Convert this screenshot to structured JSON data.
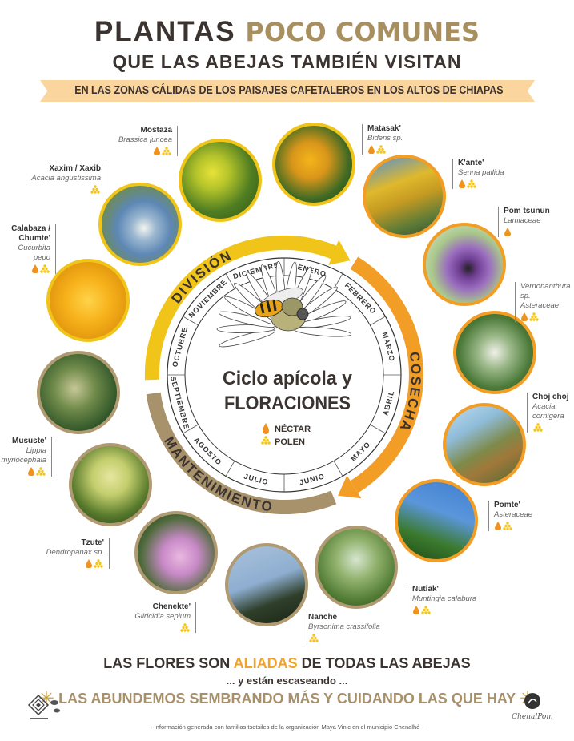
{
  "header": {
    "title_dark": "PLANTAS",
    "title_accent": "POCO COMUNES",
    "subtitle": "QUE LAS ABEJAS TAMBIÉN VISITAN",
    "ribbon": "EN LAS ZONAS CÁLIDAS DE LOS PAISAJES CAFETALEROS EN LOS ALTOS DE CHIAPAS"
  },
  "wheel": {
    "title_line1": "Ciclo apícola y",
    "title_line2": "FLORACIONES",
    "legend": {
      "nectar": "NÉCTAR",
      "pollen": "POLEN"
    },
    "seasons": {
      "division": "DIVISIÓN",
      "cosecha": "COSECHA",
      "mantenimiento": "MANTENIMIENTO"
    },
    "months": [
      "ENERO",
      "FEBRERO",
      "MARZO",
      "ABRIL",
      "MAYO",
      "JUNIO",
      "JULIO",
      "AGOSTO",
      "SEPTIEMBRE",
      "OCTUBRE",
      "NOVIEMBRE",
      "DICIEMBRE"
    ]
  },
  "colors": {
    "division": "#f0c419",
    "cosecha": "#f29d25",
    "mantenimiento": "#a8926b",
    "nectar": "#f0931e",
    "pollen": "#f5c518",
    "ribbon": "#fbd59e",
    "accent_text": "#a88f5f"
  },
  "plants": [
    {
      "name": "Mostaza",
      "scientific": "Brassica juncea",
      "nectar": true,
      "pollen": true
    },
    {
      "name": "Matasak'",
      "scientific": "Bidens sp.",
      "nectar": true,
      "pollen": true
    },
    {
      "name": "Xaxim / Xaxib",
      "scientific": "Acacia angustissima",
      "nectar": false,
      "pollen": true
    },
    {
      "name": "K'ante'",
      "scientific": "Senna pallida",
      "nectar": true,
      "pollen": true
    },
    {
      "name": "Calabaza / Chumte'",
      "scientific": "Cucurbita pepo",
      "nectar": true,
      "pollen": true
    },
    {
      "name": "Pom tsunun",
      "scientific": "Lamiaceae",
      "nectar": true,
      "pollen": false
    },
    {
      "name": "",
      "scientific": "Vernonanthura sp.",
      "family": "Asteraceae",
      "nectar": true,
      "pollen": true
    },
    {
      "name": "Mususte'",
      "scientific": "Lippia myriocephala",
      "nectar": true,
      "pollen": true
    },
    {
      "name": "Choj choj",
      "scientific": "Acacia cornigera",
      "nectar": false,
      "pollen": true
    },
    {
      "name": "Tzute'",
      "scientific": "Dendropanax sp.",
      "nectar": true,
      "pollen": true
    },
    {
      "name": "Pomte'",
      "scientific": "Asteraceae",
      "nectar": true,
      "pollen": true
    },
    {
      "name": "Chenekte'",
      "scientific": "Gliricidia sepium",
      "nectar": false,
      "pollen": true
    },
    {
      "name": "Nutiak'",
      "scientific": "Muntingia calabura",
      "nectar": true,
      "pollen": true
    },
    {
      "name": "Nanche",
      "scientific": "Byrsonima crassifolia",
      "nectar": false,
      "pollen": true
    }
  ],
  "footer": {
    "line1_a": "LAS FLORES SON",
    "line1_accent": "ALIADAS",
    "line1_b": "DE TODAS LAS ABEJAS",
    "line2": "... y están escaseando ...",
    "line3": "LAS ABUNDEMOS SEMBRANDO MÁS Y CUIDANDO LAS QUE HAY",
    "credit": "- Información generada con familias tsotsiles de la organización Maya Vinic en el municipio Chenalhó -",
    "logo_right": "ChenalPom"
  }
}
